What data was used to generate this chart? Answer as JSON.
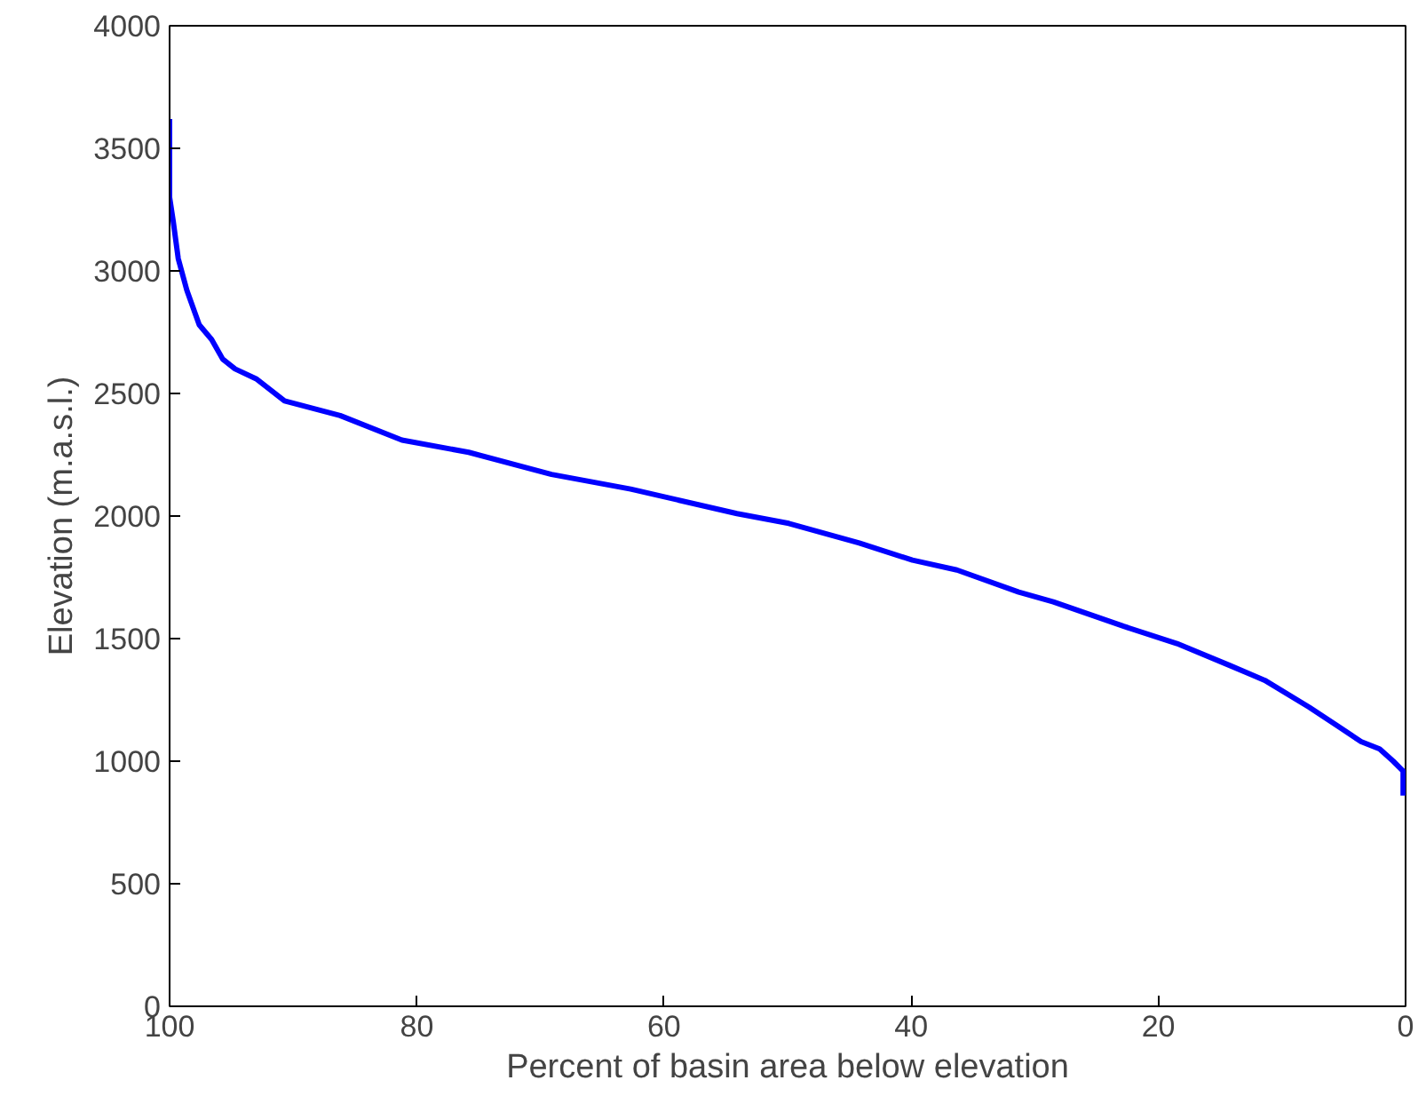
{
  "chart_data": {
    "type": "line",
    "xlabel": "Percent of basin area below elevation",
    "ylabel": "Elevation (m.a.s.l.)",
    "x": [
      100,
      100,
      99.7,
      99.3,
      98.6,
      97.6,
      96.6,
      95.7,
      94.7,
      93,
      90.7,
      86.2,
      81.2,
      75.8,
      69.1,
      62.7,
      54.1,
      49.9,
      44.2,
      39.9,
      36.3,
      31.3,
      28.5,
      22.8,
      18.5,
      14.2,
      11.4,
      7.8,
      5.7,
      3.6,
      2.1,
      1.0,
      0.4,
      0.2,
      0.2
    ],
    "series": [
      {
        "color": "#0000ff",
        "values": [
          3620,
          3300,
          3200,
          3050,
          2920,
          2780,
          2720,
          2640,
          2600,
          2560,
          2470,
          2410,
          2310,
          2260,
          2170,
          2110,
          2010,
          1970,
          1890,
          1820,
          1780,
          1690,
          1650,
          1550,
          1480,
          1390,
          1330,
          1220,
          1150,
          1080,
          1050,
          1000,
          970,
          960,
          860
        ]
      }
    ],
    "xlim": [
      100,
      0
    ],
    "ylim": [
      0,
      4000
    ],
    "xticks": [
      0,
      20,
      40,
      60,
      80,
      100
    ],
    "yticks": [
      0,
      500,
      1000,
      1500,
      2000,
      2500,
      3000,
      3500,
      4000
    ],
    "grid": false,
    "marker": "none",
    "line_style": "solid"
  }
}
